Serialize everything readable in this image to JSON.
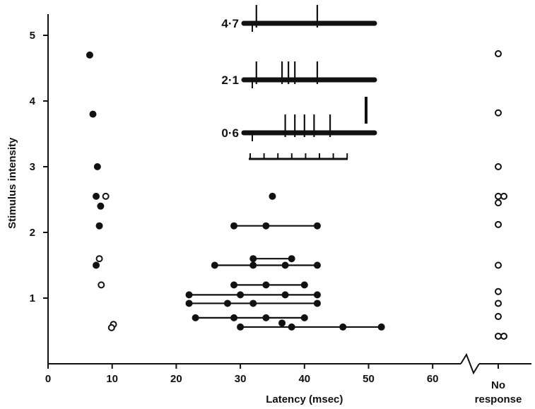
{
  "chart_data": {
    "type": "scatter",
    "xlabel": "Latency (msec)",
    "ylabel": "Stimulus intensity",
    "xlim": [
      0,
      65
    ],
    "ylim": [
      0,
      5.5
    ],
    "x_ticks": [
      "0",
      "10",
      "20",
      "30",
      "40",
      "50",
      "60"
    ],
    "y_ticks": [
      "1",
      "2",
      "3",
      "4",
      "5"
    ],
    "no_response_label": [
      "No",
      "response"
    ],
    "filled_points": [
      {
        "x": 6.5,
        "y": 4.7
      },
      {
        "x": 7.0,
        "y": 3.8
      },
      {
        "x": 7.7,
        "y": 3.0
      },
      {
        "x": 7.5,
        "y": 2.55
      },
      {
        "x": 8.2,
        "y": 2.4
      },
      {
        "x": 8.0,
        "y": 2.1
      },
      {
        "x": 7.5,
        "y": 1.5
      },
      {
        "x": 35.0,
        "y": 2.55
      },
      {
        "x": 36.5,
        "y": 0.62
      }
    ],
    "open_points": [
      {
        "x": 9.0,
        "y": 2.55
      },
      {
        "x": 8.0,
        "y": 1.6
      },
      {
        "x": 8.3,
        "y": 1.2
      },
      {
        "x": 10.2,
        "y": 0.6
      },
      {
        "x": 9.9,
        "y": 0.55
      }
    ],
    "linked_responses": [
      {
        "y": 2.1,
        "x": [
          29,
          34,
          42
        ]
      },
      {
        "y": 1.6,
        "x": [
          32,
          38
        ]
      },
      {
        "y": 1.5,
        "x": [
          26,
          32,
          37,
          42
        ]
      },
      {
        "y": 1.2,
        "x": [
          29,
          34,
          40
        ]
      },
      {
        "y": 1.05,
        "x": [
          22,
          30,
          37,
          42
        ]
      },
      {
        "y": 0.92,
        "x": [
          22,
          28,
          32,
          42
        ]
      },
      {
        "y": 0.7,
        "x": [
          23,
          29,
          34,
          40
        ]
      },
      {
        "y": 0.56,
        "x": [
          30,
          38,
          46,
          52
        ]
      }
    ],
    "no_response_points": [
      {
        "y": 4.72,
        "x_offset": 0
      },
      {
        "y": 3.82,
        "x_offset": 0
      },
      {
        "y": 3.0,
        "x_offset": 0
      },
      {
        "y": 2.55,
        "x_offset": 0
      },
      {
        "y": 2.55,
        "x_offset": 1
      },
      {
        "y": 2.45,
        "x_offset": 0
      },
      {
        "y": 2.12,
        "x_offset": 0
      },
      {
        "y": 1.5,
        "x_offset": 0
      },
      {
        "y": 1.1,
        "x_offset": 0
      },
      {
        "y": 0.92,
        "x_offset": 0
      },
      {
        "y": 0.72,
        "x_offset": 0
      },
      {
        "y": 0.42,
        "x_offset": 0
      },
      {
        "y": 0.42,
        "x_offset": 1
      }
    ],
    "traces": [
      {
        "label": "4·7",
        "spikes_ms": [
          32.5,
          42.0
        ]
      },
      {
        "label": "2·1",
        "spikes_ms": [
          32.5,
          36.5,
          37.5,
          38.5,
          42.0
        ]
      },
      {
        "label": "0·6",
        "spikes_ms": [
          37.0,
          38.5,
          40.0,
          41.5,
          44.0
        ]
      }
    ],
    "grid": false,
    "legend": "none"
  }
}
